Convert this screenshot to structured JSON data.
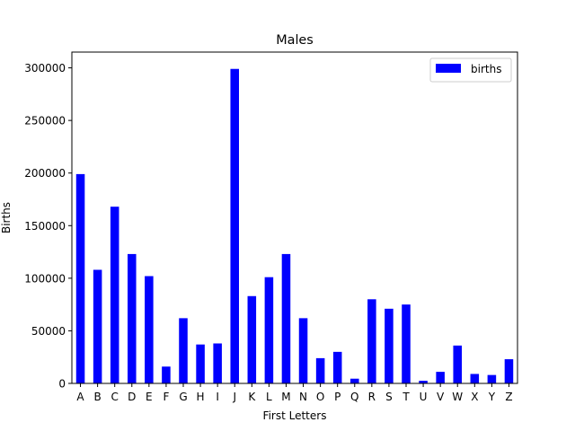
{
  "chart_data": {
    "type": "bar",
    "title": "Males",
    "xlabel": "First Letters",
    "ylabel": "Births",
    "categories": [
      "A",
      "B",
      "C",
      "D",
      "E",
      "F",
      "G",
      "H",
      "I",
      "J",
      "K",
      "L",
      "M",
      "N",
      "O",
      "P",
      "Q",
      "R",
      "S",
      "T",
      "U",
      "V",
      "W",
      "X",
      "Y",
      "Z"
    ],
    "series": [
      {
        "name": "births",
        "color": "#0000ff",
        "values": [
          199000,
          108000,
          168000,
          123000,
          102000,
          16000,
          62000,
          37000,
          38000,
          299000,
          83000,
          101000,
          123000,
          62000,
          24000,
          30000,
          4500,
          80000,
          71000,
          75000,
          2500,
          11000,
          36000,
          9000,
          8000,
          23000
        ]
      }
    ],
    "ylim": [
      0,
      315000
    ],
    "yticks": [
      0,
      50000,
      100000,
      150000,
      200000,
      250000,
      300000
    ],
    "ytick_labels": [
      "0",
      "50000",
      "100000",
      "150000",
      "200000",
      "250000",
      "300000"
    ],
    "grid": false,
    "legend_position": "top-right"
  }
}
